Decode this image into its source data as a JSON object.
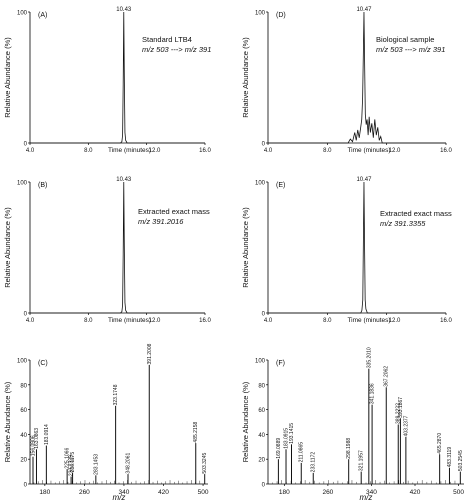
{
  "chart_data": [
    {
      "panel": "(A)",
      "type": "line",
      "ylabel": "Relative Abundance (%)",
      "xlabel": "Time (minutes)",
      "xlim": [
        4.0,
        16.0
      ],
      "ylim": [
        0,
        100
      ],
      "x_ticks": [
        "4.0",
        "8.0",
        "12.0",
        "16.0"
      ],
      "y_ticks": [
        "0",
        "100"
      ],
      "peak_label": "10.43",
      "annotation": [
        "Standard LTB4",
        "m/z 503 ---> m/z 391"
      ],
      "series": [
        {
          "x": [
            4.0,
            10.2,
            10.3,
            10.35,
            10.39,
            10.43,
            10.47,
            10.51,
            10.56,
            10.66,
            16.0
          ],
          "y": [
            0,
            0,
            1,
            6,
            45,
            100,
            48,
            8,
            2,
            0,
            0
          ]
        }
      ]
    },
    {
      "panel": "(D)",
      "type": "line",
      "ylabel": "Relative Abundance (%)",
      "xlabel": "Time (minutes)",
      "xlim": [
        4.0,
        16.0
      ],
      "ylim": [
        0,
        100
      ],
      "x_ticks": [
        "4.0",
        "8.0",
        "12.0",
        "16.0"
      ],
      "y_ticks": [
        "0",
        "100"
      ],
      "peak_label": "10.47",
      "annotation": [
        "Biological sample",
        "m/z 503 ---> m/z 391"
      ],
      "series": [
        {
          "x": [
            4.0,
            9.4,
            9.55,
            9.7,
            9.85,
            9.95,
            10.05,
            10.15,
            10.25,
            10.32,
            10.38,
            10.43,
            10.47,
            10.51,
            10.56,
            10.62,
            10.68,
            10.75,
            10.82,
            10.9,
            11.0,
            11.1,
            11.2,
            11.3,
            11.4,
            11.5,
            11.6,
            11.7,
            16.0
          ],
          "y": [
            0,
            0,
            3,
            1,
            8,
            2,
            10,
            4,
            12,
            18,
            35,
            70,
            100,
            65,
            22,
            14,
            18,
            6,
            20,
            8,
            15,
            4,
            18,
            6,
            12,
            2,
            5,
            0,
            0
          ]
        }
      ]
    },
    {
      "panel": "(B)",
      "type": "line",
      "ylabel": "Relative Abundance (%)",
      "xlabel": "Time (minutes)",
      "xlim": [
        4.0,
        16.0
      ],
      "ylim": [
        0,
        100
      ],
      "x_ticks": [
        "4.0",
        "8.0",
        "12.0",
        "16.0"
      ],
      "y_ticks": [
        "0",
        "100"
      ],
      "peak_label": "10.43",
      "annotation": [
        "Extracted exact mass",
        "m/z 391.2016"
      ],
      "series": [
        {
          "x": [
            4.0,
            10.2,
            10.3,
            10.35,
            10.39,
            10.43,
            10.47,
            10.51,
            10.56,
            10.66,
            16.0
          ],
          "y": [
            0,
            0,
            1,
            6,
            45,
            100,
            48,
            8,
            2,
            0,
            0
          ]
        }
      ]
    },
    {
      "panel": "(E)",
      "type": "line",
      "ylabel": "Relative Abundance (%)",
      "xlabel": "Time (minutes)",
      "xlim": [
        4.0,
        16.0
      ],
      "ylim": [
        0,
        100
      ],
      "x_ticks": [
        "4.0",
        "8.0",
        "12.0",
        "16.0"
      ],
      "y_ticks": [
        "0",
        "100"
      ],
      "peak_label": "10.47",
      "annotation": [
        "Extracted exact mass",
        "m/z 391.3355"
      ],
      "series": [
        {
          "x": [
            4.0,
            10.25,
            10.33,
            10.39,
            10.43,
            10.47,
            10.51,
            10.55,
            10.6,
            10.7,
            16.0
          ],
          "y": [
            0,
            0,
            2,
            10,
            55,
            100,
            52,
            10,
            3,
            0,
            0
          ]
        }
      ]
    },
    {
      "panel": "(C)",
      "type": "bar",
      "ylabel": "Relative Abundance (%)",
      "xlabel": "m/z",
      "xlim": [
        150,
        510
      ],
      "ylim": [
        0,
        100
      ],
      "x_ticks": [
        "180",
        "260",
        "340",
        "420",
        "500"
      ],
      "y_ticks": [
        "0",
        "20",
        "40",
        "60",
        "80",
        "100"
      ],
      "peaks": [
        {
          "mz": 156.0906,
          "y": 22,
          "label": "156.0906"
        },
        {
          "mz": 163.0863,
          "y": 28,
          "label": "163.0863"
        },
        {
          "mz": 183.0914,
          "y": 31,
          "label": "183.0914"
        },
        {
          "mz": 225.1066,
          "y": 12,
          "label": "225.1066"
        },
        {
          "mz": 236.1175,
          "y": 9,
          "label": "236.1175"
        },
        {
          "mz": 233.1329,
          "y": 6,
          "label": "233.1329"
        },
        {
          "mz": 283.1453,
          "y": 7,
          "label": "283.1453"
        },
        {
          "mz": 323.1748,
          "y": 63,
          "label": "323.1748"
        },
        {
          "mz": 348.2061,
          "y": 8,
          "label": "348.2061"
        },
        {
          "mz": 391.2008,
          "y": 96,
          "label": "391.2008"
        },
        {
          "mz": 485.2158,
          "y": 33,
          "label": "485.2158"
        },
        {
          "mz": 503.3245,
          "y": 8,
          "label": "503.3245"
        }
      ]
    },
    {
      "panel": "(F)",
      "type": "bar",
      "ylabel": "Relative Abundance (%)",
      "xlabel": "m/z",
      "xlim": [
        150,
        510
      ],
      "ylim": [
        0,
        100
      ],
      "x_ticks": [
        "180",
        "260",
        "340",
        "420",
        "500"
      ],
      "y_ticks": [
        "0",
        "20",
        "40",
        "60",
        "80",
        "100"
      ],
      "peaks": [
        {
          "mz": 169.0889,
          "y": 20,
          "label": "169.0889"
        },
        {
          "mz": 183.0915,
          "y": 28,
          "label": "183.0915"
        },
        {
          "mz": 193.1415,
          "y": 32,
          "label": "193.1415"
        },
        {
          "mz": 211.0865,
          "y": 17,
          "label": "211.0865"
        },
        {
          "mz": 233.1172,
          "y": 9,
          "label": "233.1172"
        },
        {
          "mz": 298.1988,
          "y": 20,
          "label": "298.1988"
        },
        {
          "mz": 321.1957,
          "y": 10,
          "label": "321.1957"
        },
        {
          "mz": 341.1836,
          "y": 64,
          "label": "341.1836"
        },
        {
          "mz": 335.201,
          "y": 93,
          "label": "335.2010"
        },
        {
          "mz": 367.2062,
          "y": 78,
          "label": "367.2062"
        },
        {
          "mz": 389.2222,
          "y": 48,
          "label": "389.2222"
        },
        {
          "mz": 393.1867,
          "y": 53,
          "label": "393.1867"
        },
        {
          "mz": 403.2377,
          "y": 38,
          "label": "403.2377"
        },
        {
          "mz": 465.287,
          "y": 24,
          "label": "465.2870"
        },
        {
          "mz": 483.3119,
          "y": 13,
          "label": "483.3119"
        },
        {
          "mz": 503.2545,
          "y": 10,
          "label": "503.2545"
        }
      ]
    }
  ]
}
